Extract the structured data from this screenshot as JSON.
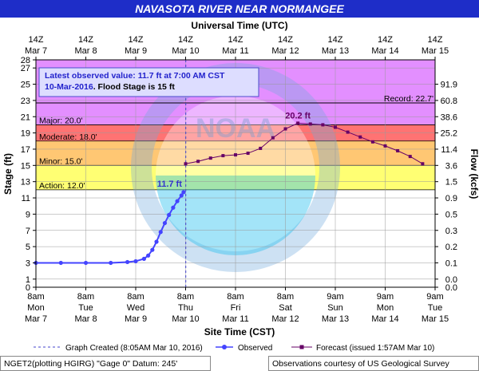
{
  "chart_data": {
    "type": "line",
    "title": "NAVASOTA RIVER NEAR NORMANGEE",
    "top_axis_title": "Universal Time (UTC)",
    "xlabel": "Site Time (CST)",
    "ylabel": "Stage (ft)",
    "y2label": "Flow (kcfs)",
    "ylim": [
      0,
      28
    ],
    "xlim": [
      "2016-03-07 08:00",
      "2016-03-15 08:00"
    ],
    "y_ticks": [
      0,
      1,
      3,
      5,
      7,
      9,
      11,
      13,
      15,
      17,
      19,
      21,
      23,
      25,
      27,
      28
    ],
    "x_ticks_bottom": [
      {
        "x": "2016-03-07 08:00",
        "lines": [
          "8am",
          "Mon",
          "Mar 7"
        ]
      },
      {
        "x": "2016-03-08 08:00",
        "lines": [
          "8am",
          "Tue",
          "Mar 8"
        ]
      },
      {
        "x": "2016-03-09 08:00",
        "lines": [
          "8am",
          "Wed",
          "Mar 9"
        ]
      },
      {
        "x": "2016-03-10 08:00",
        "lines": [
          "8am",
          "Thu",
          "Mar 10"
        ]
      },
      {
        "x": "2016-03-11 08:00",
        "lines": [
          "8am",
          "Fri",
          "Mar 11"
        ]
      },
      {
        "x": "2016-03-12 08:00",
        "lines": [
          "8am",
          "Sat",
          "Mar 12"
        ]
      },
      {
        "x": "2016-03-13 08:00",
        "lines": [
          "9am",
          "Sun",
          "Mar 13"
        ]
      },
      {
        "x": "2016-03-14 08:00",
        "lines": [
          "9am",
          "Mon",
          "Mar 14"
        ]
      },
      {
        "x": "2016-03-15 08:00",
        "lines": [
          "9am",
          "Tue",
          "Mar 15"
        ]
      }
    ],
    "x_ticks_top": [
      {
        "x": "2016-03-07 08:00",
        "lines": [
          "14Z",
          "Mar 7"
        ]
      },
      {
        "x": "2016-03-08 08:00",
        "lines": [
          "14Z",
          "Mar 8"
        ]
      },
      {
        "x": "2016-03-09 08:00",
        "lines": [
          "14Z",
          "Mar 9"
        ]
      },
      {
        "x": "2016-03-10 08:00",
        "lines": [
          "14Z",
          "Mar 10"
        ]
      },
      {
        "x": "2016-03-11 08:00",
        "lines": [
          "14Z",
          "Mar 11"
        ]
      },
      {
        "x": "2016-03-12 08:00",
        "lines": [
          "14Z",
          "Mar 12"
        ]
      },
      {
        "x": "2016-03-13 08:00",
        "lines": [
          "14Z",
          "Mar 13"
        ]
      },
      {
        "x": "2016-03-14 08:00",
        "lines": [
          "14Z",
          "Mar 14"
        ]
      },
      {
        "x": "2016-03-15 08:00",
        "lines": [
          "14Z",
          "Mar 15"
        ]
      }
    ],
    "flow_ticks": [
      {
        "stage": 0,
        "label": "0.0"
      },
      {
        "stage": 1,
        "label": "0.0"
      },
      {
        "stage": 3,
        "label": "0.1"
      },
      {
        "stage": 5,
        "label": "0.2"
      },
      {
        "stage": 7,
        "label": "0.3"
      },
      {
        "stage": 9,
        "label": "0.5"
      },
      {
        "stage": 11,
        "label": "0.9"
      },
      {
        "stage": 13,
        "label": "1.5"
      },
      {
        "stage": 15,
        "label": "3.6"
      },
      {
        "stage": 17,
        "label": "11.4"
      },
      {
        "stage": 19,
        "label": "25.2"
      },
      {
        "stage": 21,
        "label": "38.6"
      },
      {
        "stage": 23,
        "label": "60.8"
      },
      {
        "stage": 25,
        "label": "91.9"
      }
    ],
    "flood_bands": [
      {
        "name": "Action",
        "label": "Action: 12.0'",
        "from": 12,
        "to": 15,
        "color": "#ffff00"
      },
      {
        "name": "Minor",
        "label": "Minor: 15.0'",
        "from": 15,
        "to": 18,
        "color": "#ff9900"
      },
      {
        "name": "Moderate",
        "label": "Moderate: 18.0'",
        "from": 18,
        "to": 20,
        "color": "#ff0000"
      },
      {
        "name": "Major",
        "label": "Major: 20.0'",
        "from": 20,
        "to": 28,
        "color": "#cc33ff"
      }
    ],
    "record": {
      "label": "Record: 22.7'",
      "value": 22.7
    },
    "series": [
      {
        "name": "Observed",
        "color": "#4444ff",
        "points": [
          [
            "2016-03-07 08:00",
            3.0
          ],
          [
            "2016-03-07 20:00",
            3.0
          ],
          [
            "2016-03-08 08:00",
            3.0
          ],
          [
            "2016-03-08 20:00",
            3.0
          ],
          [
            "2016-03-09 04:00",
            3.1
          ],
          [
            "2016-03-09 08:00",
            3.2
          ],
          [
            "2016-03-09 12:00",
            3.5
          ],
          [
            "2016-03-09 14:00",
            3.9
          ],
          [
            "2016-03-09 16:00",
            4.6
          ],
          [
            "2016-03-09 18:00",
            5.6
          ],
          [
            "2016-03-09 20:00",
            6.8
          ],
          [
            "2016-03-09 22:00",
            7.9
          ],
          [
            "2016-03-10 00:00",
            8.9
          ],
          [
            "2016-03-10 02:00",
            9.8
          ],
          [
            "2016-03-10 04:00",
            10.6
          ],
          [
            "2016-03-10 06:00",
            11.3
          ],
          [
            "2016-03-10 07:00",
            11.7
          ]
        ]
      },
      {
        "name": "Forecast",
        "color": "#660066",
        "points": [
          [
            "2016-03-10 08:00",
            15.2
          ],
          [
            "2016-03-10 14:00",
            15.5
          ],
          [
            "2016-03-10 20:00",
            15.9
          ],
          [
            "2016-03-11 02:00",
            16.2
          ],
          [
            "2016-03-11 08:00",
            16.3
          ],
          [
            "2016-03-11 14:00",
            16.5
          ],
          [
            "2016-03-11 20:00",
            17.1
          ],
          [
            "2016-03-12 02:00",
            18.4
          ],
          [
            "2016-03-12 08:00",
            19.5
          ],
          [
            "2016-03-12 14:00",
            20.2
          ],
          [
            "2016-03-12 20:00",
            20.1
          ],
          [
            "2016-03-13 02:00",
            20.0
          ],
          [
            "2016-03-13 08:00",
            19.7
          ],
          [
            "2016-03-13 14:00",
            19.1
          ],
          [
            "2016-03-13 20:00",
            18.5
          ],
          [
            "2016-03-14 02:00",
            17.9
          ],
          [
            "2016-03-14 08:00",
            17.4
          ],
          [
            "2016-03-14 14:00",
            16.8
          ],
          [
            "2016-03-14 20:00",
            16.1
          ],
          [
            "2016-03-15 02:00",
            15.2
          ]
        ]
      }
    ],
    "graph_created": "2016-03-10 08:05",
    "annotations": {
      "observed_value": "11.7 ft",
      "crest": "20.2 ft"
    },
    "info_box": {
      "line1": "Latest observed value: 11.7 ft at 7:00 AM CST",
      "line2_date": "10-Mar-2016",
      "line2_rest": "Flood Stage is 15 ft"
    },
    "legend": {
      "graph_created": "Graph Created (8:05AM Mar 10, 2016)",
      "observed": "Observed",
      "forecast": "Forecast (issued 1:57AM Mar 10)"
    },
    "footer": {
      "left": "NGET2(plotting HGIRG) \"Gage 0\" Datum: 245'",
      "right": "Observations courtesy of US Geological Survey"
    },
    "watermark": "NOAA"
  },
  "colors": {
    "title_bar": "#1e2dc8",
    "plot_bg": "#ffffff",
    "grid": "#999999",
    "record_line": "#000000"
  }
}
